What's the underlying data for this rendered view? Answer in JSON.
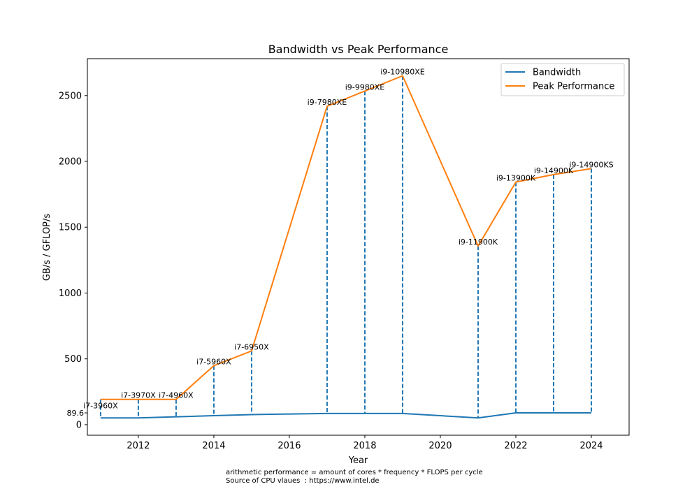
{
  "chart_data": {
    "type": "line",
    "title": "Bandwidth vs Peak Performance",
    "xlabel": "Year",
    "ylabel": "GB/s / GFLOP/s",
    "xlim": [
      2010.65,
      2025.0
    ],
    "ylim": [
      -80,
      2780
    ],
    "x_ticks": [
      2012,
      2014,
      2016,
      2018,
      2020,
      2022,
      2024
    ],
    "y_ticks": [
      0,
      500,
      1000,
      1500,
      2000,
      2500
    ],
    "y_extra_tick": {
      "value": 89.6,
      "label": "89.6"
    },
    "grid": false,
    "legend_position": "top-right",
    "series": [
      {
        "name": "Bandwidth",
        "color": "#1f77b4",
        "x": [
          2011,
          2012,
          2013,
          2014,
          2015,
          2017,
          2018,
          2019,
          2021,
          2022,
          2023,
          2024
        ],
        "y": [
          51.2,
          51.2,
          59.7,
          68.3,
          76.8,
          85.3,
          85.3,
          85.3,
          51.2,
          89.6,
          89.6,
          89.6
        ]
      },
      {
        "name": "Peak Performance",
        "color": "#ff7f0e",
        "x": [
          2011,
          2012,
          2013,
          2014,
          2015,
          2017,
          2018,
          2019,
          2021,
          2022,
          2023,
          2024
        ],
        "y": [
          192,
          192,
          192,
          448,
          560,
          2419,
          2534,
          2650,
          1357,
          1843,
          1900,
          1945
        ]
      }
    ],
    "annotations": [
      {
        "x": 2011,
        "text": "i7-3960X",
        "anchor": "bandwidth",
        "dy": -14
      },
      {
        "x": 2012,
        "text": "i7-3970X",
        "anchor": "peak",
        "dy": -2
      },
      {
        "x": 2013,
        "text": "i7-4960X",
        "anchor": "peak",
        "dy": -2
      },
      {
        "x": 2014,
        "text": "i7-5960X",
        "anchor": "peak",
        "dy": -2
      },
      {
        "x": 2015,
        "text": "i7-6950X",
        "anchor": "peak",
        "dy": -2
      },
      {
        "x": 2017,
        "text": "i9-7980XE",
        "anchor": "peak",
        "dy": -2
      },
      {
        "x": 2018,
        "text": "i9-9980XE",
        "anchor": "peak",
        "dy": -2
      },
      {
        "x": 2019,
        "text": "i9-10980XE",
        "anchor": "peak",
        "dy": -2
      },
      {
        "x": 2021,
        "text": "i9-11900K",
        "anchor": "peak",
        "dy": -2
      },
      {
        "x": 2022,
        "text": "i9-13900K",
        "anchor": "peak",
        "dy": -2
      },
      {
        "x": 2023,
        "text": "i9-14900K",
        "anchor": "peak",
        "dy": -2
      },
      {
        "x": 2024,
        "text": "i9-14900KS",
        "anchor": "peak",
        "dy": -2
      }
    ]
  },
  "notes": {
    "line1": "arithmetic performance = amount of cores * frequency * FLOPS per cycle",
    "line2": "Source of CPU vlaues  : https://www.intel.de"
  }
}
